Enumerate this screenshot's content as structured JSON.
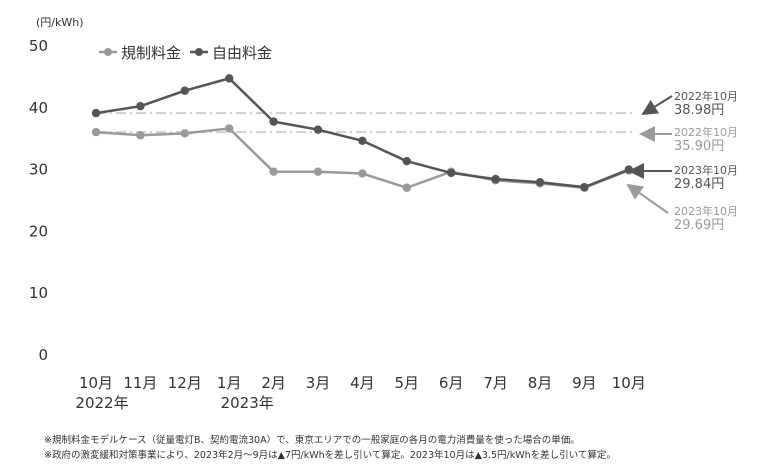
{
  "chart_data": {
    "type": "line",
    "unit_label": "(円/kWh)",
    "categories": [
      "10月",
      "11月",
      "12月",
      "1月",
      "2月",
      "3月",
      "4月",
      "5月",
      "6月",
      "7月",
      "8月",
      "9月",
      "10月"
    ],
    "year_labels": [
      "2022年",
      "",
      "",
      "2023年",
      "",
      "",
      "",
      "",
      "",
      "",
      "",
      "",
      ""
    ],
    "ylim": [
      0,
      50
    ],
    "yticks": [
      "0",
      "10",
      "20",
      "30",
      "40",
      "50"
    ],
    "grid": false,
    "legend_position": "top-left",
    "series": [
      {
        "name": "規制料金",
        "color": "#9a9a9a",
        "values": [
          35.9,
          35.4,
          35.7,
          36.5,
          29.5,
          29.5,
          29.2,
          26.9,
          29.5,
          28.1,
          27.6,
          26.9,
          29.69
        ]
      },
      {
        "name": "自由料金",
        "color": "#555555",
        "values": [
          38.98,
          40.1,
          42.6,
          44.6,
          37.6,
          36.3,
          34.5,
          31.2,
          29.3,
          28.3,
          27.8,
          27.0,
          29.84
        ]
      }
    ],
    "reference_lines": [
      {
        "value": 38.98,
        "series": 1
      },
      {
        "value": 35.9,
        "series": 0
      }
    ],
    "annotations": [
      {
        "series": 1,
        "index": 0,
        "label": "2022年10月",
        "value": "38.98円"
      },
      {
        "series": 0,
        "index": 0,
        "label": "2022年10月",
        "value": "35.90円"
      },
      {
        "series": 1,
        "index": 12,
        "label": "2023年10月",
        "value": "29.84円"
      },
      {
        "series": 0,
        "index": 12,
        "label": "2023年10月",
        "value": "29.69円"
      }
    ]
  },
  "notes": [
    "※規制料金モデルケース（従量電灯B、契約電流30A）で、東京エリアでの一般家庭の各月の電力消費量を使った場合の単価。",
    "※政府の激変緩和対策事業により、2023年2月～9月は▲7円/kWhを差し引いて算定。2023年10月は▲3.5円/kWhを差し引いて算定。"
  ]
}
